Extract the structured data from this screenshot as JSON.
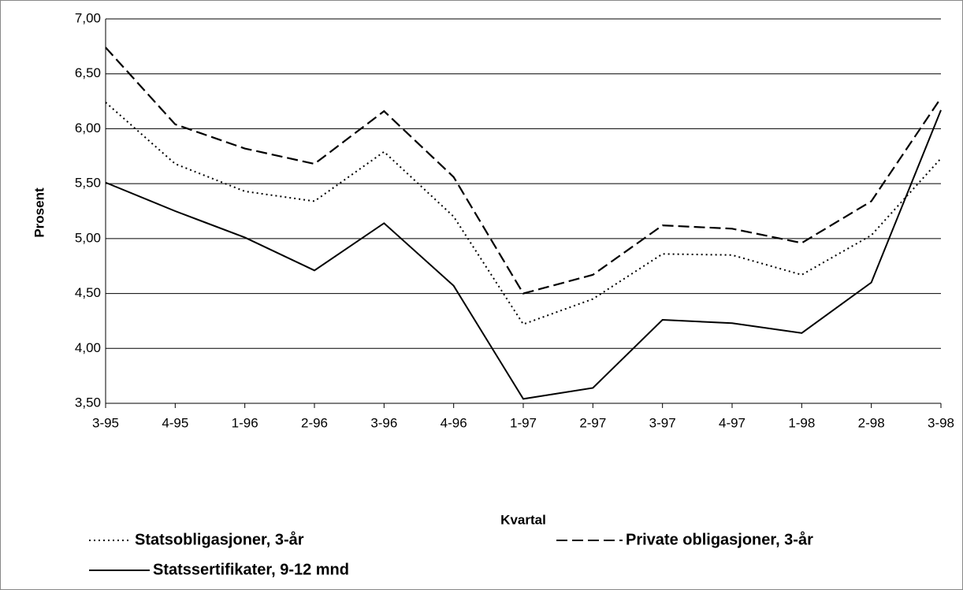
{
  "chart_data": {
    "type": "line",
    "x_label": "Kvartal",
    "y_label": "Prosent",
    "categories": [
      "3-95",
      "4-95",
      "1-96",
      "2-96",
      "3-96",
      "4-96",
      "1-97",
      "2-97",
      "3-97",
      "4-97",
      "1-98",
      "2-98",
      "3-98"
    ],
    "series": [
      {
        "name": "Statsobligasjoner, 3-år",
        "color": "#000000",
        "style": "dotted",
        "values": [
          6.24,
          5.68,
          5.43,
          5.34,
          5.79,
          5.2,
          4.22,
          4.45,
          4.86,
          4.85,
          4.67,
          5.03,
          5.73
        ]
      },
      {
        "name": "Private obligasjoner, 3-år",
        "color": "#000000",
        "style": "dashed",
        "values": [
          6.74,
          6.04,
          5.82,
          5.68,
          6.16,
          5.56,
          4.5,
          4.67,
          5.12,
          5.09,
          4.96,
          5.34,
          6.28
        ]
      },
      {
        "name": "Statssertifikater, 9-12 mnd",
        "color": "#000000",
        "style": "solid",
        "values": [
          5.51,
          5.25,
          5.01,
          4.71,
          5.14,
          4.57,
          3.54,
          3.64,
          4.26,
          4.23,
          4.14,
          4.6,
          6.17
        ]
      }
    ],
    "ylim": [
      3.5,
      7.0
    ],
    "yticks": [
      {
        "value": 3.5,
        "label": "3,50"
      },
      {
        "value": 4.0,
        "label": "4,00"
      },
      {
        "value": 4.5,
        "label": "4,50"
      },
      {
        "value": 5.0,
        "label": "5,00"
      },
      {
        "value": 5.5,
        "label": "5,50"
      },
      {
        "value": 6.0,
        "label": "6,00"
      },
      {
        "value": 6.5,
        "label": "6,50"
      },
      {
        "value": 7.0,
        "label": "7,00"
      }
    ],
    "grid": true
  }
}
